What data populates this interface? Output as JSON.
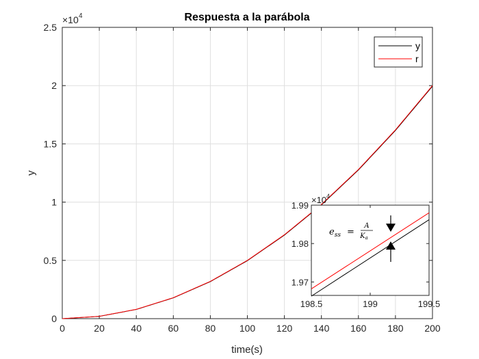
{
  "chart_data": [
    {
      "type": "line",
      "title": "Respuesta a la parábola",
      "xlabel": "time(s)",
      "ylabel": "y",
      "exponent_label": "×10",
      "exponent_power": "4",
      "xlim": [
        0,
        200
      ],
      "ylim": [
        0,
        25000
      ],
      "xticks": [
        0,
        20,
        40,
        60,
        80,
        100,
        120,
        140,
        160,
        180,
        200
      ],
      "xtick_labels": [
        "0",
        "20",
        "40",
        "60",
        "80",
        "100",
        "120",
        "140",
        "160",
        "180",
        "200"
      ],
      "yticks": [
        0,
        5000,
        10000,
        15000,
        20000,
        25000
      ],
      "ytick_labels": [
        "0",
        "0.5",
        "1",
        "1.5",
        "2",
        "2.5"
      ],
      "grid": true,
      "legend_position": "top-right",
      "series": [
        {
          "name": "y",
          "color": "#000000",
          "x": [
            0,
            20,
            40,
            60,
            80,
            100,
            120,
            140,
            160,
            180,
            200
          ],
          "values": [
            0,
            195,
            790,
            1785,
            3180,
            4975,
            7170,
            9765,
            12760,
            16155,
            19950
          ]
        },
        {
          "name": "r",
          "color": "#ff0000",
          "x": [
            0,
            20,
            40,
            60,
            80,
            100,
            120,
            140,
            160,
            180,
            200
          ],
          "values": [
            0,
            200,
            800,
            1800,
            3200,
            5000,
            7200,
            9800,
            12800,
            16200,
            20000
          ]
        }
      ]
    },
    {
      "type": "line",
      "title": "",
      "exponent_label": "×10",
      "exponent_power": "4",
      "xlim": [
        198.5,
        199.5
      ],
      "ylim": [
        19665,
        19900
      ],
      "xticks": [
        198.5,
        199,
        199.5
      ],
      "xtick_labels": [
        "198.5",
        "199",
        "199.5"
      ],
      "yticks": [
        19700,
        19800,
        19900
      ],
      "ytick_labels": [
        "1.97",
        "1.98",
        "1.99"
      ],
      "grid": false,
      "series": [
        {
          "name": "y",
          "color": "#000000",
          "x": [
            198.5,
            199.5
          ],
          "values": [
            19663,
            19862
          ]
        },
        {
          "name": "r",
          "color": "#ff0000",
          "x": [
            198.5,
            199.5
          ],
          "values": [
            19682,
            19880
          ]
        }
      ],
      "annotations": [
        {
          "text_lhs": "e",
          "text_sub": "ss",
          "equals": "=",
          "numerator": "A",
          "denominator": "K",
          "denominator_sub": "a",
          "arrows": "up-down"
        }
      ]
    }
  ]
}
